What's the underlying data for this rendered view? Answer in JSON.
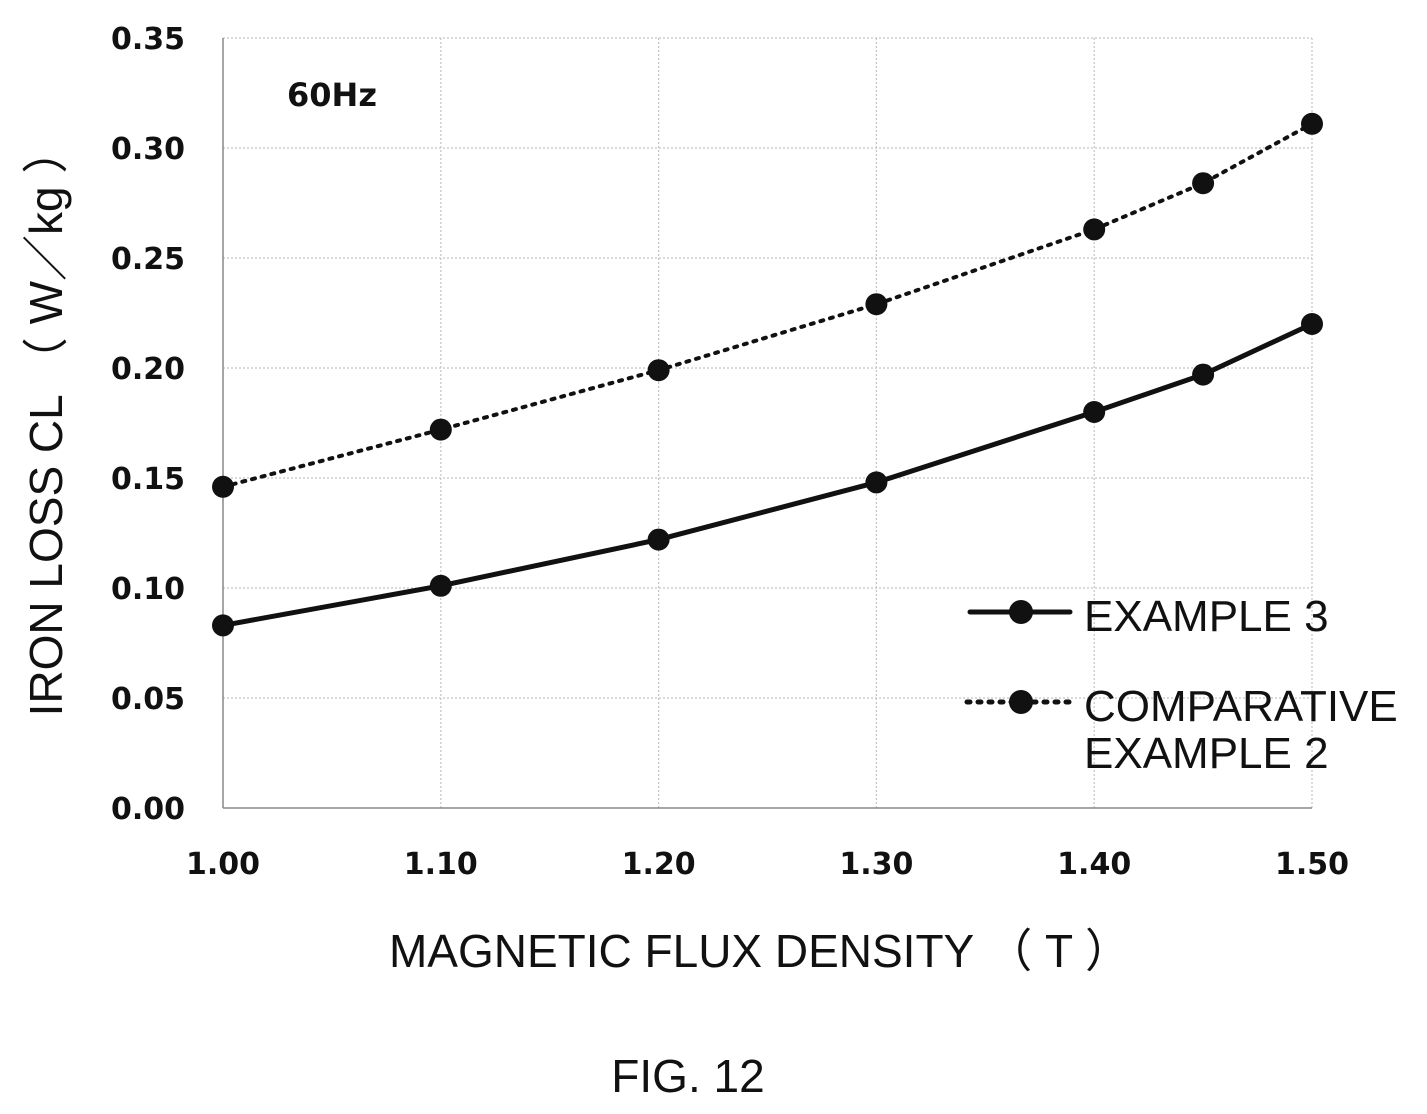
{
  "chart_data": {
    "type": "line",
    "title": "",
    "xlabel": "MAGNETIC FLUX DENSITY （ T ）",
    "ylabel": "IRON LOSS CL （ W／kg ）",
    "xlim": [
      1.0,
      1.5
    ],
    "ylim": [
      0.0,
      0.35
    ],
    "x_ticks": [
      "1.00",
      "1.10",
      "1.20",
      "1.30",
      "1.40",
      "1.50"
    ],
    "y_ticks": [
      "0.00",
      "0.05",
      "0.10",
      "0.15",
      "0.20",
      "0.25",
      "0.30",
      "0.35"
    ],
    "grid": true,
    "legend_position": "right",
    "annotation": "60Hz",
    "series": [
      {
        "name": "EXAMPLE 3",
        "line_style": "solid",
        "marker": "circle",
        "color": "#111111",
        "x": [
          1.0,
          1.1,
          1.2,
          1.3,
          1.4,
          1.45,
          1.5
        ],
        "y": [
          0.083,
          0.101,
          0.122,
          0.148,
          0.18,
          0.197,
          0.22
        ]
      },
      {
        "name": "COMPARATIVE EXAMPLE 2",
        "name_lines": [
          "COMPARATIVE",
          "EXAMPLE 2"
        ],
        "line_style": "dotted",
        "marker": "circle",
        "color": "#111111",
        "x": [
          1.0,
          1.1,
          1.2,
          1.3,
          1.4,
          1.45,
          1.5
        ],
        "y": [
          0.146,
          0.172,
          0.199,
          0.229,
          0.263,
          0.284,
          0.311
        ]
      }
    ]
  },
  "caption": "FIG. 12"
}
